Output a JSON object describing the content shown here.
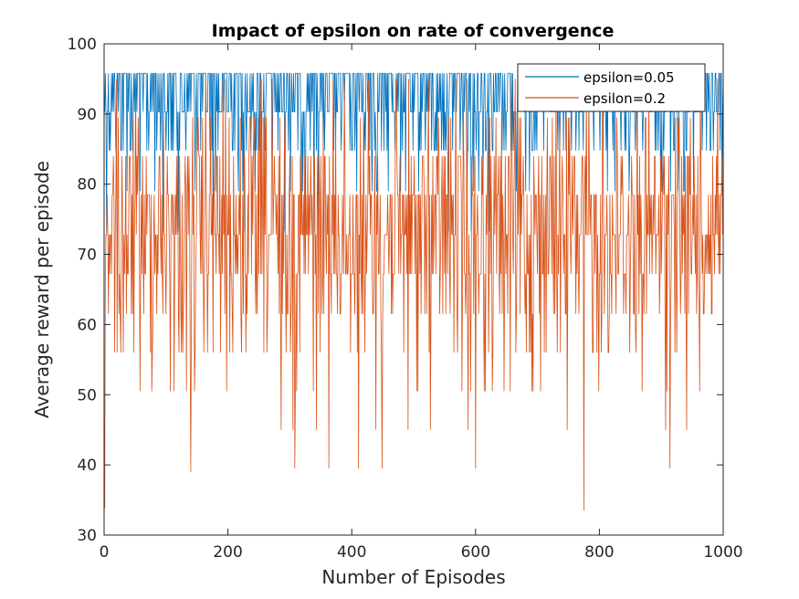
{
  "chart_data": {
    "type": "line",
    "title": "Impact of epsilon on rate of convergence",
    "xlabel": "Number of Episodes",
    "ylabel": "Average reward per episode",
    "xlim": [
      0,
      1000
    ],
    "ylim": [
      30,
      100
    ],
    "xticks": [
      "0",
      "200",
      "400",
      "600",
      "800",
      "1000"
    ],
    "yticks": [
      "30",
      "40",
      "50",
      "60",
      "70",
      "80",
      "90",
      "100"
    ],
    "grid": false,
    "legend_position": "top-right",
    "n_points": 1000,
    "series": [
      {
        "name": "epsilon=0.05",
        "color": "#0072BD",
        "levels": [
          95.8,
          90.3,
          84.8,
          79.0,
          73.3
        ],
        "level_probs": [
          0.52,
          0.28,
          0.14,
          0.04,
          0.02
        ],
        "min": 68,
        "max": 96
      },
      {
        "name": "epsilon=0.2",
        "color": "#D95319",
        "levels": [
          95.0,
          89.5,
          84.0,
          78.5,
          72.8,
          67.2,
          61.5,
          56.0,
          50.5,
          45.0,
          39.5
        ],
        "level_probs": [
          0.02,
          0.05,
          0.12,
          0.22,
          0.22,
          0.18,
          0.09,
          0.05,
          0.03,
          0.01,
          0.01
        ],
        "min": 33.5,
        "max": 95
      }
    ]
  }
}
